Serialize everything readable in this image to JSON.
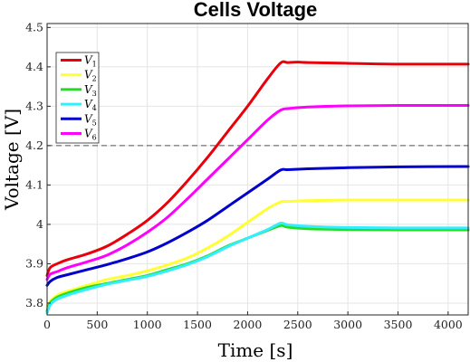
{
  "chart_data": {
    "type": "line",
    "title": "Cells Voltage",
    "xlabel": "Time [s]",
    "ylabel": "Voltage [V]",
    "xlim": [
      0,
      4200
    ],
    "ylim": [
      3.77,
      4.51
    ],
    "x_ticks": [
      0,
      500,
      1000,
      1500,
      2000,
      2500,
      3000,
      3500,
      4000
    ],
    "x_tick_labels": [
      "0",
      "500",
      "1000",
      "1500",
      "2000",
      "2500",
      "3000",
      "3500",
      "4000"
    ],
    "y_ticks": [
      3.8,
      3.9,
      4.0,
      4.1,
      4.2,
      4.3,
      4.4,
      4.5
    ],
    "y_tick_labels": [
      "3.8",
      "3.9",
      "4",
      "4.1",
      "4.2",
      "4.3",
      "4.4",
      "4.5"
    ],
    "grid": true,
    "legend_position": "top-left",
    "reference_line": {
      "y": 4.2,
      "style": "dashed",
      "color": "#555555"
    },
    "series": [
      {
        "name": "V",
        "sub": "1",
        "color": "#e8000b",
        "x": [
          0,
          30,
          100,
          200,
          400,
          600,
          800,
          1000,
          1200,
          1400,
          1600,
          1800,
          2000,
          2200,
          2330,
          2400,
          2500,
          2600,
          3000,
          3500,
          4200
        ],
        "y": [
          3.87,
          3.89,
          3.9,
          3.91,
          3.925,
          3.945,
          3.975,
          4.01,
          4.055,
          4.11,
          4.17,
          4.235,
          4.3,
          4.37,
          4.41,
          4.411,
          4.412,
          4.411,
          4.409,
          4.407,
          4.407
        ]
      },
      {
        "name": "V",
        "sub": "2",
        "color": "#ffff33",
        "x": [
          0,
          30,
          100,
          200,
          400,
          600,
          800,
          1000,
          1200,
          1400,
          1600,
          1800,
          2000,
          2200,
          2330,
          2400,
          2600,
          3000,
          3500,
          4200
        ],
        "y": [
          3.79,
          3.805,
          3.82,
          3.83,
          3.845,
          3.86,
          3.87,
          3.882,
          3.897,
          3.915,
          3.94,
          3.97,
          4.005,
          4.04,
          4.057,
          4.058,
          4.06,
          4.062,
          4.062,
          4.062
        ]
      },
      {
        "name": "V",
        "sub": "3",
        "color": "#22dd22",
        "x": [
          0,
          30,
          100,
          200,
          400,
          600,
          800,
          1000,
          1200,
          1400,
          1600,
          1800,
          2000,
          2200,
          2330,
          2400,
          2600,
          3000,
          3500,
          4200
        ],
        "y": [
          3.78,
          3.8,
          3.815,
          3.825,
          3.84,
          3.85,
          3.86,
          3.87,
          3.885,
          3.9,
          3.92,
          3.945,
          3.965,
          3.985,
          3.997,
          3.993,
          3.989,
          3.987,
          3.986,
          3.986
        ]
      },
      {
        "name": "V",
        "sub": "4",
        "color": "#33eeff",
        "x": [
          0,
          30,
          100,
          200,
          400,
          600,
          800,
          1000,
          1200,
          1400,
          1600,
          1800,
          2000,
          2200,
          2330,
          2400,
          2600,
          3000,
          3500,
          4200
        ],
        "y": [
          3.775,
          3.795,
          3.81,
          3.82,
          3.835,
          3.848,
          3.858,
          3.868,
          3.882,
          3.898,
          3.918,
          3.943,
          3.965,
          3.987,
          4.003,
          3.999,
          3.995,
          3.992,
          3.991,
          3.991
        ]
      },
      {
        "name": "V",
        "sub": "5",
        "color": "#0000cc",
        "x": [
          0,
          30,
          100,
          200,
          400,
          600,
          800,
          1000,
          1200,
          1400,
          1600,
          1800,
          2000,
          2200,
          2330,
          2400,
          2600,
          3000,
          3500,
          4200
        ],
        "y": [
          3.845,
          3.855,
          3.865,
          3.872,
          3.885,
          3.898,
          3.913,
          3.93,
          3.953,
          3.98,
          4.01,
          4.045,
          4.08,
          4.115,
          4.138,
          4.139,
          4.141,
          4.144,
          4.146,
          4.147
        ]
      },
      {
        "name": "V",
        "sub": "6",
        "color": "#ff00ff",
        "x": [
          0,
          30,
          100,
          200,
          400,
          600,
          800,
          1000,
          1200,
          1400,
          1600,
          1800,
          2000,
          2200,
          2330,
          2400,
          2600,
          3000,
          3500,
          4200
        ],
        "y": [
          3.86,
          3.873,
          3.88,
          3.89,
          3.905,
          3.922,
          3.948,
          3.98,
          4.018,
          4.065,
          4.115,
          4.165,
          4.215,
          4.265,
          4.29,
          4.294,
          4.298,
          4.301,
          4.302,
          4.302
        ]
      }
    ]
  }
}
